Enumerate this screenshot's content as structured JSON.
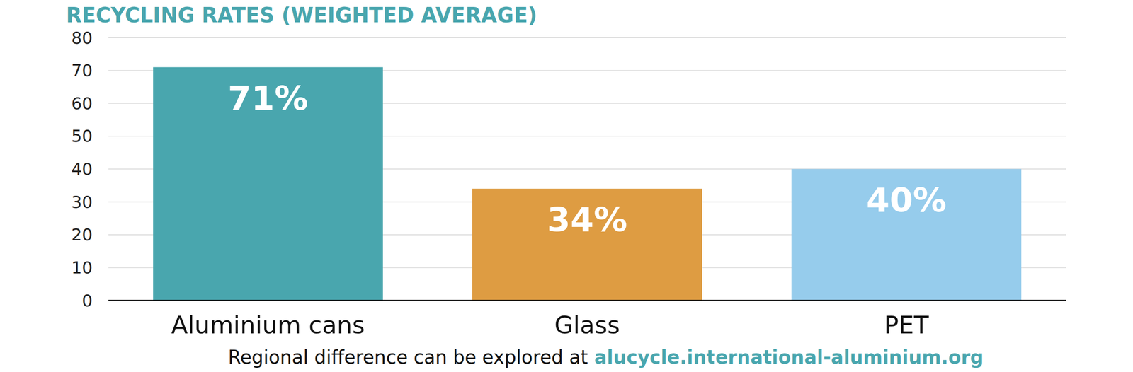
{
  "chart_data": {
    "type": "bar",
    "title": "RECYCLING RATES (WEIGHTED AVERAGE)",
    "categories": [
      "Aluminium cans",
      "Glass",
      "PET"
    ],
    "values": [
      71,
      34,
      40
    ],
    "value_labels": [
      "71%",
      "34%",
      "40%"
    ],
    "colors": [
      "#49a6ae",
      "#de9c42",
      "#96ccec"
    ],
    "ylim": [
      0,
      80
    ],
    "yticks": [
      0,
      10,
      20,
      30,
      40,
      50,
      60,
      70,
      80
    ],
    "grid": true,
    "data_labels": true,
    "footer": "Regional difference can be explored at",
    "footer_link": "alucycle.international-aluminium.org"
  }
}
